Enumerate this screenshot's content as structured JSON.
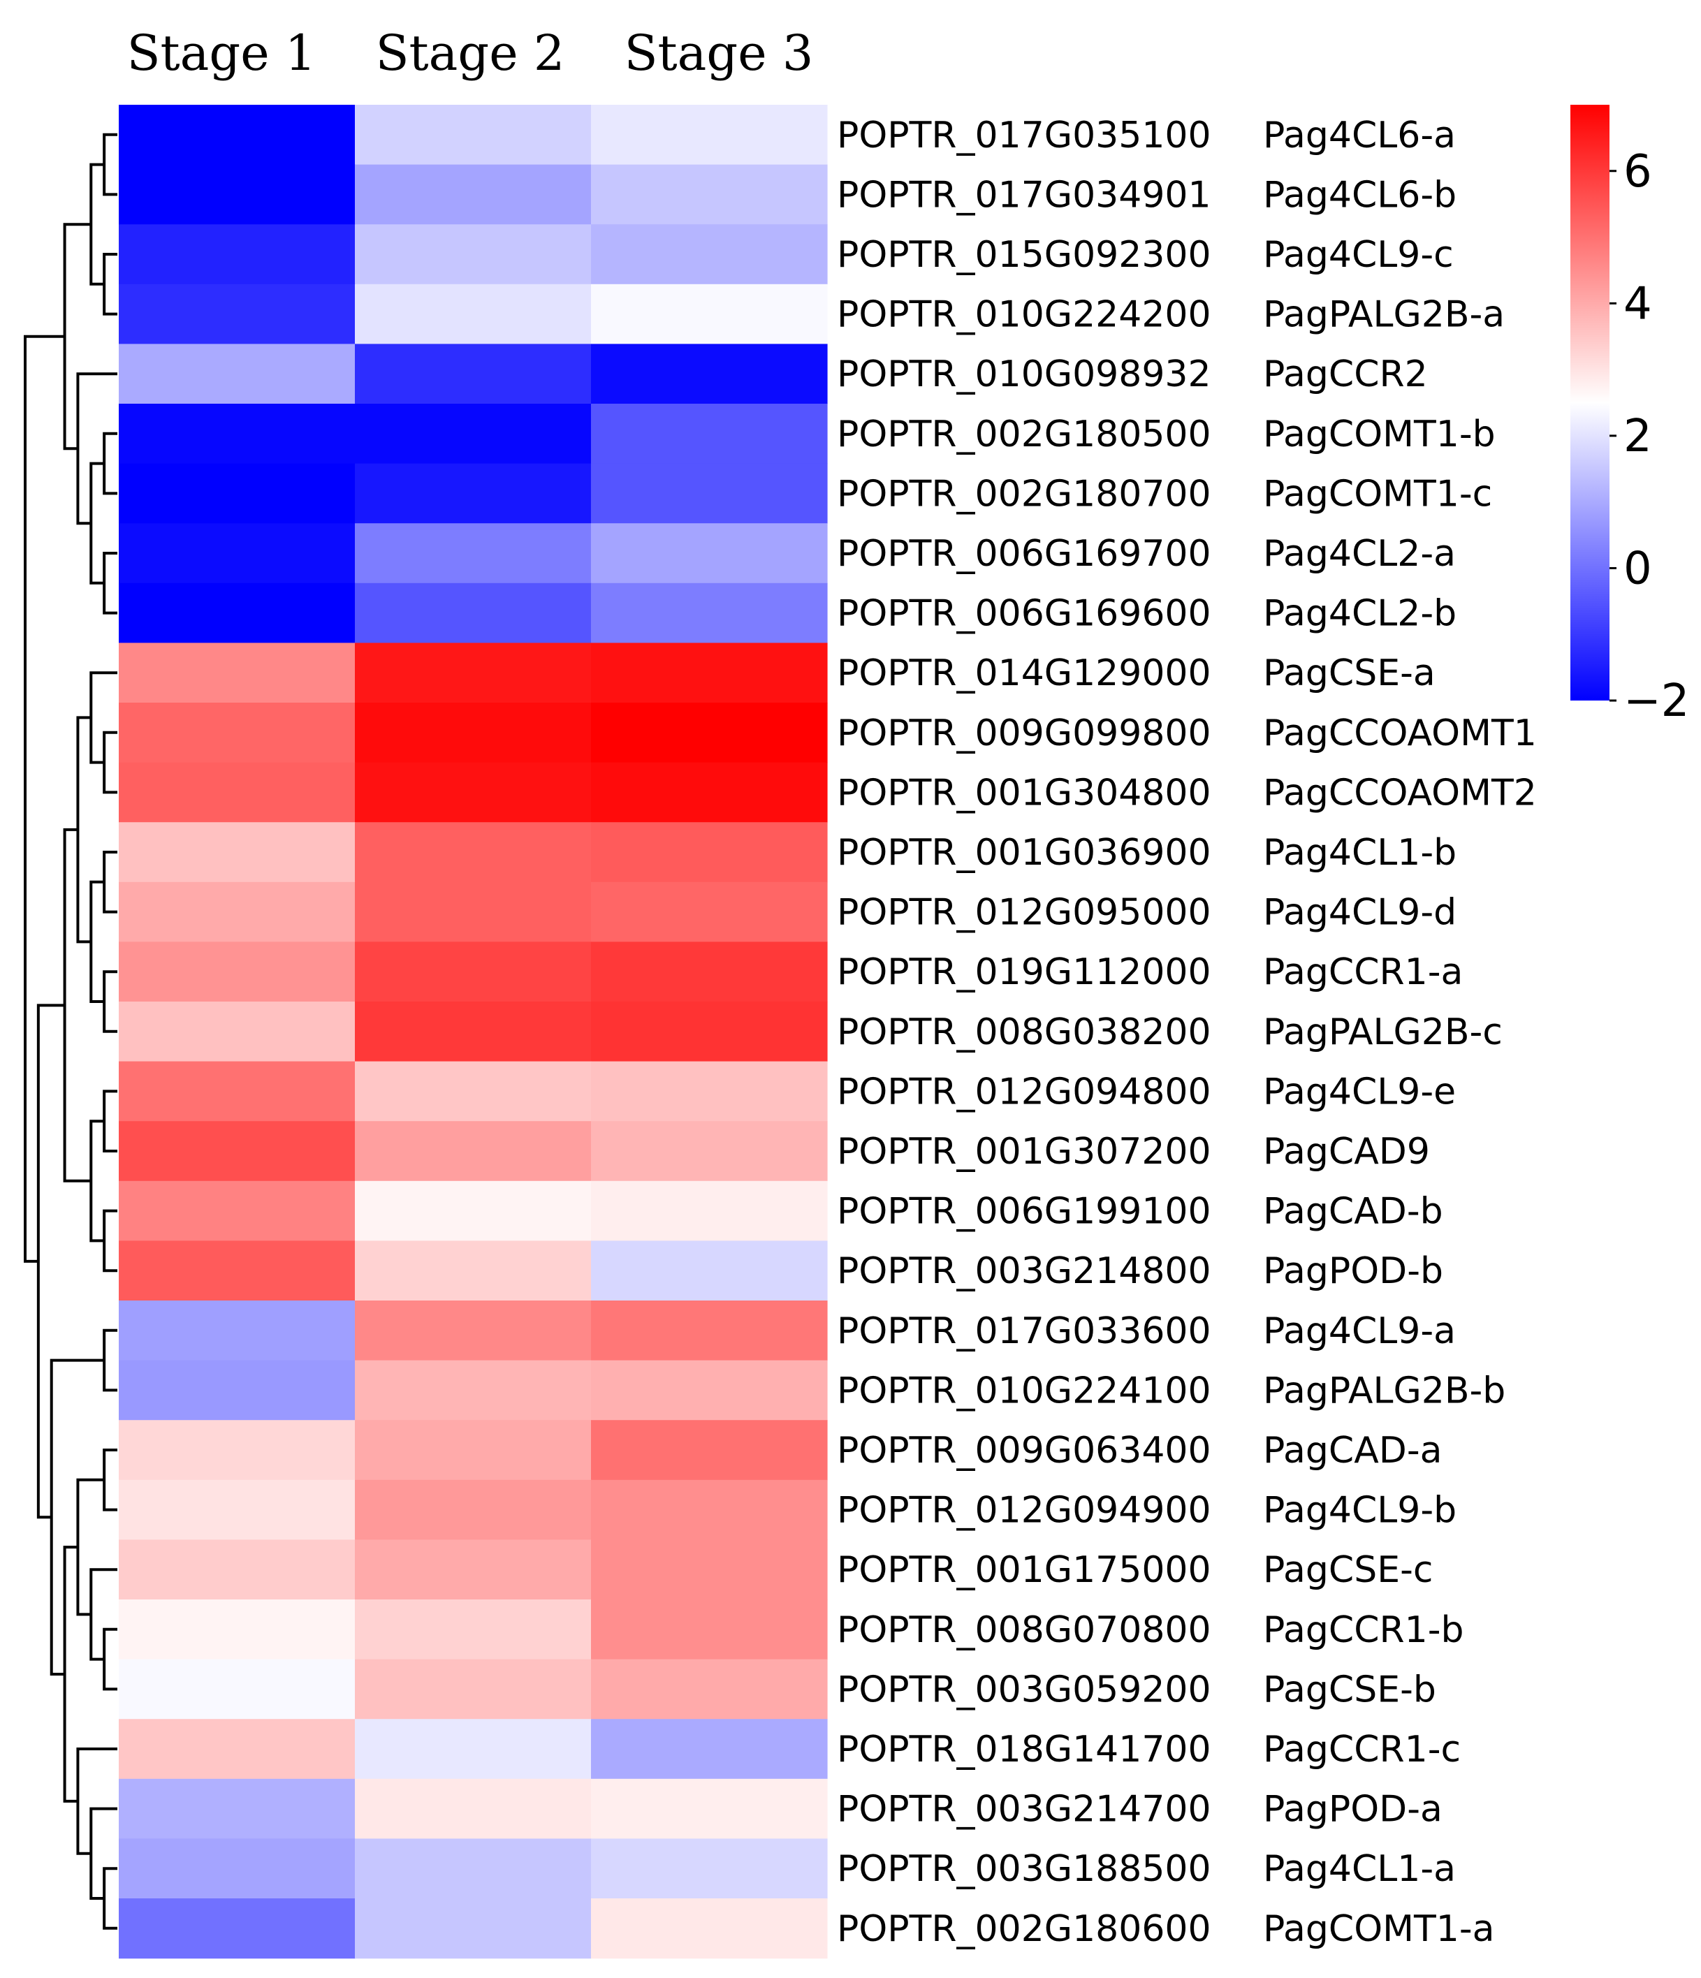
{
  "chart_data": {
    "type": "heatmap",
    "title": "",
    "xlabel": "",
    "ylabel": "",
    "columns": [
      "Stage 1",
      "Stage 2",
      "Stage 3"
    ],
    "rows": [
      {
        "id": "POPTR_017G035100",
        "name": "Pag4CL6-a",
        "values": [
          -2.0,
          1.7,
          2.1
        ]
      },
      {
        "id": "POPTR_017G034901",
        "name": "Pag4CL6-b",
        "values": [
          -2.0,
          0.9,
          1.5
        ]
      },
      {
        "id": "POPTR_015G092300",
        "name": "Pag4CL9-c",
        "values": [
          -1.4,
          1.5,
          1.2
        ]
      },
      {
        "id": "POPTR_010G224200",
        "name": "PagPALG2B-a",
        "values": [
          -1.2,
          2.0,
          2.4
        ]
      },
      {
        "id": "POPTR_010G098932",
        "name": "PagCCR2",
        "values": [
          1.0,
          -1.2,
          -1.8
        ]
      },
      {
        "id": "POPTR_002G180500",
        "name": "PagCOMT1-b",
        "values": [
          -1.9,
          -1.9,
          -0.5
        ]
      },
      {
        "id": "POPTR_002G180700",
        "name": "PagCOMT1-c",
        "values": [
          -2.0,
          -1.6,
          -0.5
        ]
      },
      {
        "id": "POPTR_006G169700",
        "name": "Pag4CL2-a",
        "values": [
          -1.8,
          0.2,
          0.9
        ]
      },
      {
        "id": "POPTR_006G169600",
        "name": "Pag4CL2-b",
        "values": [
          -2.0,
          -0.5,
          0.2
        ]
      },
      {
        "id": "POPTR_014G129000",
        "name": "PagCSE-a",
        "values": [
          4.6,
          6.6,
          6.7
        ]
      },
      {
        "id": "POPTR_009G099800",
        "name": "PagCCOAOMT1",
        "values": [
          5.2,
          6.8,
          7.0
        ]
      },
      {
        "id": "POPTR_001G304800",
        "name": "PagCCOAOMT2",
        "values": [
          5.3,
          6.7,
          6.8
        ]
      },
      {
        "id": "POPTR_001G036900",
        "name": "Pag4CL1-b",
        "values": [
          3.6,
          5.3,
          5.4
        ]
      },
      {
        "id": "POPTR_012G095000",
        "name": "Pag4CL9-d",
        "values": [
          4.0,
          5.3,
          5.2
        ]
      },
      {
        "id": "POPTR_019G112000",
        "name": "PagCCR1-a",
        "values": [
          4.4,
          5.8,
          6.0
        ]
      },
      {
        "id": "POPTR_008G038200",
        "name": "PagPALG2B-c",
        "values": [
          3.6,
          6.0,
          6.1
        ]
      },
      {
        "id": "POPTR_012G094800",
        "name": "Pag4CL9-e",
        "values": [
          5.0,
          3.5,
          3.6
        ]
      },
      {
        "id": "POPTR_001G307200",
        "name": "PagCAD9",
        "values": [
          5.6,
          4.2,
          3.8
        ]
      },
      {
        "id": "POPTR_006G199100",
        "name": "PagCAD-b",
        "values": [
          4.7,
          2.7,
          2.8
        ]
      },
      {
        "id": "POPTR_003G214800",
        "name": "PagPOD-b",
        "values": [
          5.4,
          3.3,
          1.8
        ]
      },
      {
        "id": "POPTR_017G033600",
        "name": "Pag4CL9-a",
        "values": [
          0.8,
          4.6,
          4.9
        ]
      },
      {
        "id": "POPTR_010G224100",
        "name": "PagPALG2B-b",
        "values": [
          0.7,
          3.8,
          3.9
        ]
      },
      {
        "id": "POPTR_009G063400",
        "name": "PagCAD-a",
        "values": [
          3.2,
          4.0,
          5.0
        ]
      },
      {
        "id": "POPTR_012G094900",
        "name": "Pag4CL9-b",
        "values": [
          3.0,
          4.3,
          4.5
        ]
      },
      {
        "id": "POPTR_001G175000",
        "name": "PagCSE-c",
        "values": [
          3.4,
          4.0,
          4.5
        ]
      },
      {
        "id": "POPTR_008G070800",
        "name": "PagCCR1-b",
        "values": [
          2.7,
          3.3,
          4.5
        ]
      },
      {
        "id": "POPTR_003G059200",
        "name": "PagCSE-b",
        "values": [
          2.4,
          3.6,
          4.0
        ]
      },
      {
        "id": "POPTR_018G141700",
        "name": "PagCCR1-c",
        "values": [
          3.5,
          2.1,
          1.0
        ]
      },
      {
        "id": "POPTR_003G214700",
        "name": "PagPOD-a",
        "values": [
          1.1,
          2.9,
          2.8
        ]
      },
      {
        "id": "POPTR_003G188500",
        "name": "Pag4CL1-a",
        "values": [
          0.9,
          1.5,
          1.8
        ]
      },
      {
        "id": "POPTR_002G180600",
        "name": "PagCOMT1-a",
        "values": [
          0.0,
          1.5,
          2.9
        ]
      }
    ],
    "color_scale": {
      "min": -2,
      "mid": 2.5,
      "max": 7,
      "low_color": "#0000ff",
      "mid_color": "#ffffff",
      "high_color": "#ff0000",
      "ticks": [
        -2,
        0,
        2,
        4,
        6
      ],
      "tick_labels": [
        "−2",
        "0",
        "2",
        "4",
        "6"
      ]
    },
    "legend_placement": "right",
    "row_dendrogram": true
  }
}
